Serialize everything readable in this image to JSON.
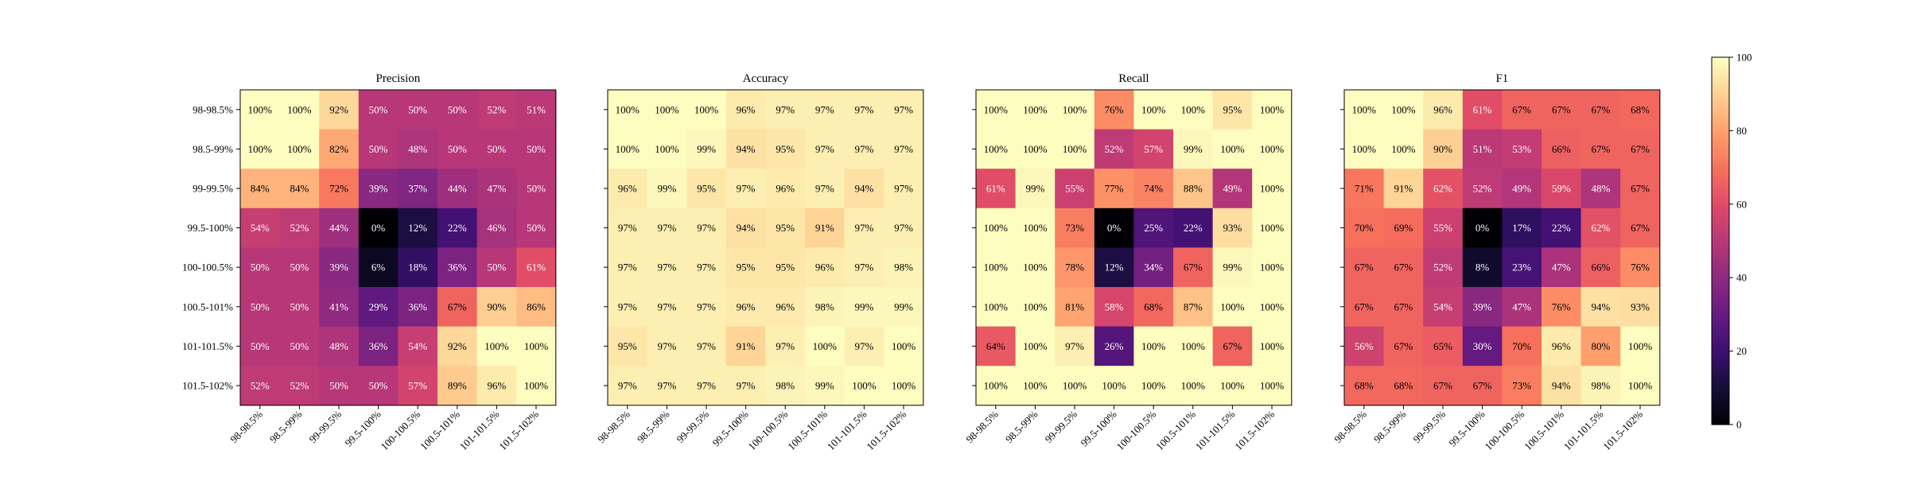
{
  "chart_data": {
    "type": "heatmap",
    "labels": [
      "98-98.5%",
      "98.5-99%",
      "99-99.5%",
      "99.5-100%",
      "100-100.5%",
      "100.5-101%",
      "101-101.5%",
      "101.5-102%"
    ],
    "value_format": "{v}%",
    "colormap": "magma",
    "vmin": 0,
    "vmax": 100,
    "colorbar_ticks": [
      0,
      20,
      40,
      60,
      80,
      100
    ],
    "panels": [
      {
        "title": "Precision",
        "values": [
          [
            100,
            100,
            92,
            50,
            50,
            50,
            52,
            51
          ],
          [
            100,
            100,
            82,
            50,
            48,
            50,
            50,
            50
          ],
          [
            84,
            84,
            72,
            39,
            37,
            44,
            47,
            50
          ],
          [
            54,
            52,
            44,
            0,
            12,
            22,
            46,
            50
          ],
          [
            50,
            50,
            39,
            6,
            18,
            36,
            50,
            61
          ],
          [
            50,
            50,
            41,
            29,
            36,
            67,
            90,
            86
          ],
          [
            50,
            50,
            48,
            36,
            54,
            92,
            100,
            100
          ],
          [
            52,
            52,
            50,
            50,
            57,
            89,
            96,
            100
          ]
        ]
      },
      {
        "title": "Accuracy",
        "values": [
          [
            100,
            100,
            100,
            96,
            97,
            97,
            97,
            97
          ],
          [
            100,
            100,
            99,
            94,
            95,
            97,
            97,
            97
          ],
          [
            96,
            99,
            95,
            97,
            96,
            97,
            94,
            97
          ],
          [
            97,
            97,
            97,
            94,
            95,
            91,
            97,
            97
          ],
          [
            97,
            97,
            97,
            95,
            95,
            96,
            97,
            98
          ],
          [
            97,
            97,
            97,
            96,
            96,
            98,
            99,
            99
          ],
          [
            95,
            97,
            97,
            91,
            97,
            100,
            97,
            100
          ],
          [
            97,
            97,
            97,
            97,
            98,
            99,
            100,
            100
          ]
        ]
      },
      {
        "title": "Recall",
        "values": [
          [
            100,
            100,
            100,
            76,
            100,
            100,
            95,
            100
          ],
          [
            100,
            100,
            100,
            52,
            57,
            99,
            100,
            100
          ],
          [
            61,
            99,
            55,
            77,
            74,
            88,
            49,
            100
          ],
          [
            100,
            100,
            73,
            0,
            25,
            22,
            93,
            100
          ],
          [
            100,
            100,
            78,
            12,
            34,
            67,
            99,
            100
          ],
          [
            100,
            100,
            81,
            58,
            68,
            87,
            100,
            100
          ],
          [
            64,
            100,
            97,
            26,
            100,
            100,
            67,
            100
          ],
          [
            100,
            100,
            100,
            100,
            100,
            100,
            100,
            100
          ]
        ]
      },
      {
        "title": "F1",
        "values": [
          [
            100,
            100,
            96,
            61,
            67,
            67,
            67,
            68
          ],
          [
            100,
            100,
            90,
            51,
            53,
            66,
            67,
            67
          ],
          [
            71,
            91,
            62,
            52,
            49,
            59,
            48,
            67
          ],
          [
            70,
            69,
            55,
            0,
            17,
            22,
            62,
            67
          ],
          [
            67,
            67,
            52,
            8,
            23,
            47,
            66,
            76
          ],
          [
            67,
            67,
            54,
            39,
            47,
            76,
            94,
            93
          ],
          [
            56,
            67,
            65,
            30,
            70,
            96,
            80,
            100
          ],
          [
            68,
            68,
            67,
            67,
            73,
            94,
            98,
            100
          ]
        ]
      }
    ]
  }
}
